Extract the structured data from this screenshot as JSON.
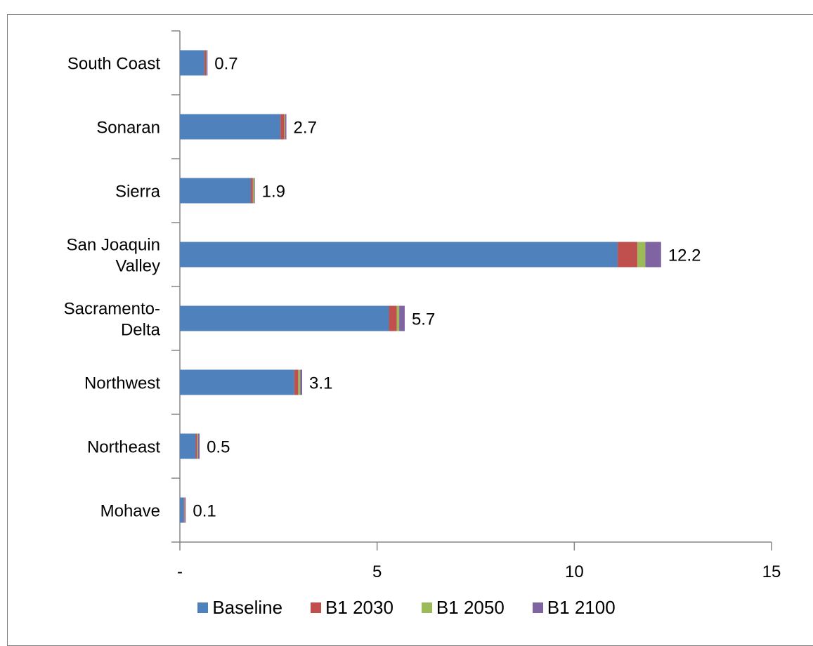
{
  "chart_data": {
    "type": "bar",
    "orientation": "horizontal",
    "stacked": true,
    "categories": [
      "Mohave",
      "Northeast",
      "Northwest",
      "Sacramento-Delta",
      "San Joaquin Valley",
      "Sierra",
      "Sonaran",
      "South Coast"
    ],
    "category_lines": [
      [
        "Mohave"
      ],
      [
        "Northeast"
      ],
      [
        "Northwest"
      ],
      [
        "Sacramento-",
        "Delta"
      ],
      [
        "San Joaquin",
        "Valley"
      ],
      [
        "Sierra"
      ],
      [
        "Sonaran"
      ],
      [
        "South Coast"
      ]
    ],
    "series": [
      {
        "name": "Baseline",
        "color": "#4f81bd",
        "values": [
          0.1,
          0.4,
          2.9,
          5.3,
          11.1,
          1.8,
          2.55,
          0.62
        ]
      },
      {
        "name": "B1 2030",
        "color": "#c0504d",
        "values": [
          0.02,
          0.04,
          0.1,
          0.2,
          0.5,
          0.05,
          0.1,
          0.04
        ]
      },
      {
        "name": "B1 2050",
        "color": "#9bbb59",
        "values": [
          0.01,
          0.02,
          0.05,
          0.06,
          0.2,
          0.03,
          0.02,
          0.01
        ]
      },
      {
        "name": "B1 2100",
        "color": "#8064a2",
        "values": [
          0.02,
          0.04,
          0.05,
          0.14,
          0.4,
          0.02,
          0.03,
          0.03
        ]
      }
    ],
    "totals": [
      "0.1",
      "0.5",
      "3.1",
      "5.7",
      "12.2",
      "1.9",
      "2.7",
      "0.7"
    ],
    "x_ticks": [
      0,
      5,
      10,
      15
    ],
    "x_tick_labels": [
      "-",
      "5",
      "10",
      "15"
    ],
    "xlim": [
      0,
      15
    ],
    "grid": false,
    "legend": "bottom"
  }
}
